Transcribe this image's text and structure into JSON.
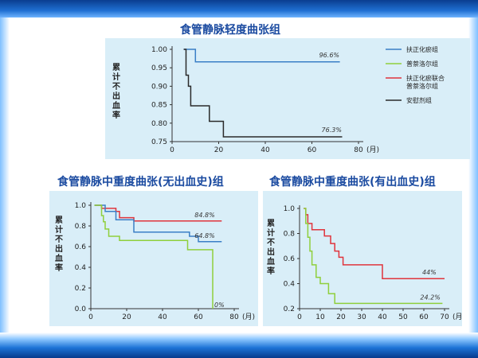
{
  "chart_data": [
    {
      "type": "line",
      "title": "食管静脉轻度曲张组",
      "ylabel": "累计不出血率",
      "x_unit": "(月)",
      "xlim": [
        0,
        80
      ],
      "ylim": [
        0.75,
        1.0
      ],
      "xticks": [
        0,
        20,
        40,
        60,
        80
      ],
      "yticks": [
        "0.75",
        "0.80",
        "0.85",
        "0.90",
        "0.95",
        "1.00"
      ],
      "legend_position": "right",
      "series": [
        {
          "name": "扶正化瘀组",
          "color": "#3a7fc6",
          "end_label": "96.6%",
          "points": [
            [
              5,
              1.0
            ],
            [
              10,
              1.0
            ],
            [
              10,
              0.966
            ],
            [
              72,
              0.966
            ]
          ]
        },
        {
          "name": "普萘洛尔组",
          "color": "#8fcf3c",
          "end_label": "",
          "points": []
        },
        {
          "name": "扶正化瘀联合\n普萘洛尔组",
          "color": "#e0343c",
          "end_label": "",
          "points": []
        },
        {
          "name": "安慰剂组",
          "color": "#2a2a2a",
          "end_label": "76.3%",
          "points": [
            [
              5,
              1.0
            ],
            [
              6,
              1.0
            ],
            [
              6,
              0.93
            ],
            [
              7,
              0.93
            ],
            [
              7,
              0.9
            ],
            [
              8,
              0.9
            ],
            [
              8,
              0.847
            ],
            [
              16,
              0.847
            ],
            [
              16,
              0.805
            ],
            [
              22,
              0.805
            ],
            [
              22,
              0.763
            ],
            [
              73,
              0.763
            ]
          ]
        }
      ]
    },
    {
      "type": "line",
      "title": "食管静脉中重度曲张(无出血史)组",
      "ylabel": "累计不出血率",
      "x_unit": "(月)",
      "xlim": [
        0,
        80
      ],
      "ylim": [
        0.0,
        1.0
      ],
      "xticks": [
        0,
        20,
        40,
        60,
        80
      ],
      "yticks": [
        "0.0",
        "0.2",
        "0.4",
        "0.6",
        "0.8",
        "1.0"
      ],
      "series": [
        {
          "color": "#e0343c",
          "end_label": "84.8%",
          "points": [
            [
              2,
              1.0
            ],
            [
              6,
              1.0
            ],
            [
              6,
              0.97
            ],
            [
              14,
              0.97
            ],
            [
              14,
              0.94
            ],
            [
              16,
              0.94
            ],
            [
              16,
              0.88
            ],
            [
              24,
              0.88
            ],
            [
              24,
              0.848
            ],
            [
              73,
              0.848
            ]
          ]
        },
        {
          "color": "#3a7fc6",
          "end_label": "64.8%",
          "points": [
            [
              2,
              1.0
            ],
            [
              8,
              1.0
            ],
            [
              8,
              0.94
            ],
            [
              14,
              0.94
            ],
            [
              14,
              0.86
            ],
            [
              24,
              0.86
            ],
            [
              24,
              0.74
            ],
            [
              55,
              0.74
            ],
            [
              55,
              0.7
            ],
            [
              60,
              0.7
            ],
            [
              60,
              0.648
            ],
            [
              73,
              0.648
            ]
          ]
        },
        {
          "color": "#8fcf3c",
          "end_label": "0%",
          "points": [
            [
              2,
              1.0
            ],
            [
              6,
              1.0
            ],
            [
              6,
              0.9
            ],
            [
              7,
              0.9
            ],
            [
              7,
              0.84
            ],
            [
              8,
              0.84
            ],
            [
              8,
              0.77
            ],
            [
              10,
              0.77
            ],
            [
              10,
              0.7
            ],
            [
              16,
              0.7
            ],
            [
              16,
              0.66
            ],
            [
              54,
              0.66
            ],
            [
              54,
              0.57
            ],
            [
              68,
              0.57
            ],
            [
              68,
              0.0
            ]
          ]
        }
      ]
    },
    {
      "type": "line",
      "title": "食管静脉中重度曲张(有出血史)组",
      "ylabel": "累计不出血率",
      "x_unit": "(月)",
      "xlim": [
        0,
        70
      ],
      "ylim": [
        0.2,
        1.0
      ],
      "xticks": [
        0,
        10,
        20,
        30,
        40,
        50,
        60,
        70
      ],
      "yticks": [
        "0.2",
        "0.4",
        "0.6",
        "0.8",
        "1.0"
      ],
      "series": [
        {
          "color": "#e0343c",
          "end_label": "44%",
          "points": [
            [
              2,
              1.0
            ],
            [
              3,
              1.0
            ],
            [
              3,
              0.95
            ],
            [
              4,
              0.95
            ],
            [
              4,
              0.88
            ],
            [
              6,
              0.88
            ],
            [
              6,
              0.83
            ],
            [
              12,
              0.83
            ],
            [
              12,
              0.78
            ],
            [
              15,
              0.78
            ],
            [
              15,
              0.72
            ],
            [
              17,
              0.72
            ],
            [
              17,
              0.66
            ],
            [
              19,
              0.66
            ],
            [
              19,
              0.61
            ],
            [
              21,
              0.61
            ],
            [
              21,
              0.55
            ],
            [
              40,
              0.55
            ],
            [
              40,
              0.44
            ],
            [
              70,
              0.44
            ]
          ]
        },
        {
          "color": "#8fcf3c",
          "end_label": "24.2%",
          "points": [
            [
              2,
              1.0
            ],
            [
              3,
              1.0
            ],
            [
              3,
              0.88
            ],
            [
              4,
              0.88
            ],
            [
              4,
              0.77
            ],
            [
              5,
              0.77
            ],
            [
              5,
              0.66
            ],
            [
              6,
              0.66
            ],
            [
              6,
              0.55
            ],
            [
              8,
              0.55
            ],
            [
              8,
              0.45
            ],
            [
              10,
              0.45
            ],
            [
              10,
              0.4
            ],
            [
              14,
              0.4
            ],
            [
              14,
              0.32
            ],
            [
              17,
              0.32
            ],
            [
              17,
              0.242
            ],
            [
              69,
              0.242
            ]
          ]
        }
      ]
    }
  ]
}
